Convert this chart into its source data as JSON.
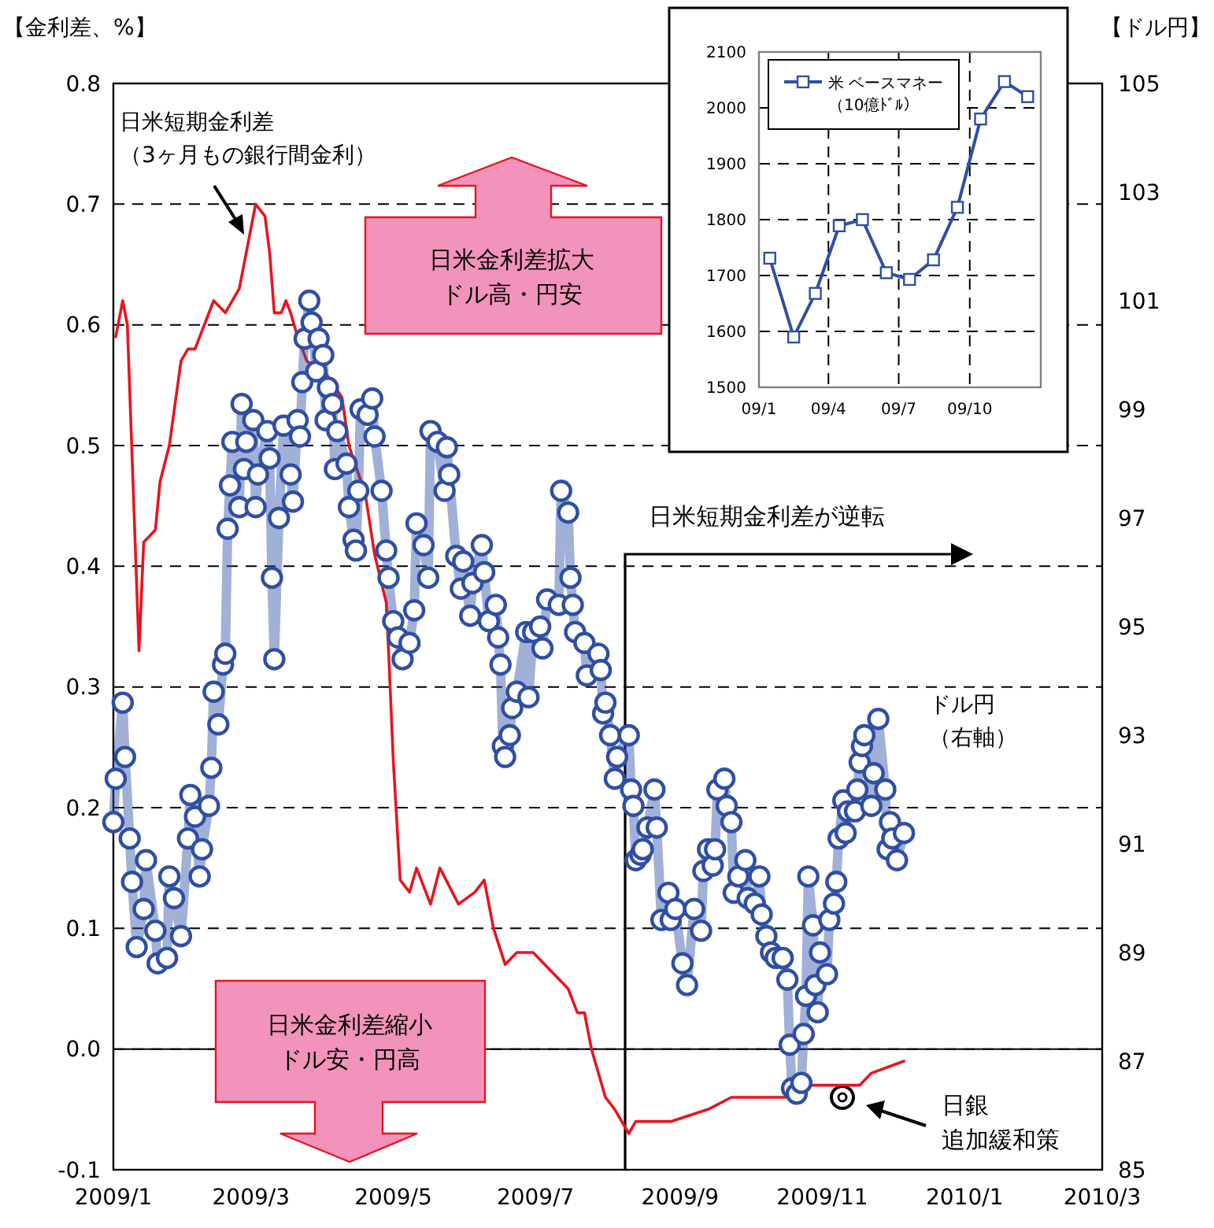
{
  "chart_data": [
    {
      "type": "line",
      "ylabel": "【金利差、%】",
      "y2label": "【ドル円】",
      "xlim": [
        "2009-01-01",
        "2010-03-01"
      ],
      "xticks": [
        {
          "value": "2009-01-01",
          "label": "2009/1"
        },
        {
          "value": "2009-03-01",
          "label": "2009/3"
        },
        {
          "value": "2009-05-01",
          "label": "2009/5"
        },
        {
          "value": "2009-07-01",
          "label": "2009/7"
        },
        {
          "value": "2009-09-01",
          "label": "2009/9"
        },
        {
          "value": "2009-11-01",
          "label": "2009/11"
        },
        {
          "value": "2010-01-01",
          "label": "2010/1"
        },
        {
          "value": "2010-03-01",
          "label": "2010/3"
        }
      ],
      "ylim": [
        -0.1,
        0.8
      ],
      "yticks": [
        -0.1,
        {
          "value": 0,
          "label": "0.0"
        },
        0.1,
        0.2,
        0.3,
        0.4,
        0.5,
        0.6,
        0.7,
        0.8
      ],
      "y2lim": [
        85,
        105
      ],
      "y2ticks": [
        85,
        87,
        89,
        91,
        93,
        95,
        97,
        99,
        101,
        103,
        105
      ],
      "grid": "y",
      "ref_lines": [
        {
          "axis": "y",
          "value": 0,
          "color": "#000000",
          "line_style": "solid"
        }
      ],
      "annotations": [
        "日米金利差拡大ドル高・円安",
        "日米金利差縮小ドル安・円高",
        "日米短期金利差が逆転",
        "日銀追加緩和策"
      ],
      "series": [
        {
          "name": "日米短期金利差（3ヶ月もの銀行間金利）",
          "color": "#e8141e",
          "marker": "none",
          "x": [
            "2009-01-02",
            "2009-01-05",
            "2009-01-07",
            "2009-01-12",
            "2009-01-14",
            "2009-01-19",
            "2009-01-21",
            "2009-01-25",
            "2009-01-30",
            "2009-02-02",
            "2009-02-05",
            "2009-02-13",
            "2009-02-18",
            "2009-02-24",
            "2009-02-27",
            "2009-03-02",
            "2009-03-03",
            "2009-03-07",
            "2009-03-09",
            "2009-03-11",
            "2009-03-14",
            "2009-03-16",
            "2009-03-18",
            "2009-03-21",
            "2009-03-25",
            "2009-04-02",
            "2009-04-09",
            "2009-04-12",
            "2009-04-19",
            "2009-04-23",
            "2009-04-28",
            "2009-04-29",
            "2009-05-01",
            "2009-05-04",
            "2009-05-08",
            "2009-05-11",
            "2009-05-17",
            "2009-05-21",
            "2009-05-29",
            "2009-06-05",
            "2009-06-09",
            "2009-06-13",
            "2009-06-18",
            "2009-06-23",
            "2009-06-30",
            "2009-07-10",
            "2009-07-15",
            "2009-07-19",
            "2009-07-22",
            "2009-07-25",
            "2009-07-31",
            "2009-08-04",
            "2009-08-10",
            "2009-08-13",
            "2009-08-28",
            "2009-09-13",
            "2009-09-23",
            "2009-10-06",
            "2009-10-08",
            "2009-10-17",
            "2009-10-27",
            "2009-11-09",
            "2009-11-17",
            "2009-11-22",
            "2009-12-06"
          ],
          "values": [
            0.59,
            0.62,
            0.6,
            0.33,
            0.42,
            0.43,
            0.47,
            0.5,
            0.57,
            0.58,
            0.58,
            0.62,
            0.61,
            0.63,
            0.66,
            0.69,
            0.7,
            0.69,
            0.66,
            0.61,
            0.61,
            0.62,
            0.61,
            0.59,
            0.57,
            0.56,
            0.54,
            0.5,
            0.46,
            0.41,
            0.37,
            0.33,
            0.24,
            0.14,
            0.13,
            0.15,
            0.12,
            0.15,
            0.12,
            0.13,
            0.14,
            0.1,
            0.07,
            0.08,
            0.08,
            0.06,
            0.05,
            0.03,
            0.03,
            0.0,
            -0.04,
            -0.05,
            -0.07,
            -0.06,
            -0.06,
            -0.05,
            -0.04,
            -0.04,
            -0.04,
            -0.04,
            -0.03,
            -0.03,
            -0.03,
            -0.02,
            -0.01
          ]
        },
        {
          "name": "ドル円（右軸）",
          "color": "#2e4fa3",
          "marker": "circle",
          "axis": "y2",
          "x": [
            "2009-01-01",
            "2009-01-02",
            "2009-01-05",
            "2009-01-06",
            "2009-01-08",
            "2009-01-09",
            "2009-01-11",
            "2009-01-14",
            "2009-01-15",
            "2009-01-19",
            "2009-01-20",
            "2009-01-24",
            "2009-01-25",
            "2009-01-27",
            "2009-01-30",
            "2009-02-02",
            "2009-02-03",
            "2009-02-05",
            "2009-02-07",
            "2009-02-08",
            "2009-02-11",
            "2009-02-12",
            "2009-02-13",
            "2009-02-15",
            "2009-02-17",
            "2009-02-18",
            "2009-02-19",
            "2009-02-20",
            "2009-02-21",
            "2009-02-24",
            "2009-02-25",
            "2009-02-26",
            "2009-02-27",
            "2009-03-02",
            "2009-03-03",
            "2009-03-04",
            "2009-03-08",
            "2009-03-09",
            "2009-03-10",
            "2009-03-11",
            "2009-03-13",
            "2009-03-15",
            "2009-03-18",
            "2009-03-19",
            "2009-03-21",
            "2009-03-22",
            "2009-03-23",
            "2009-03-24",
            "2009-03-26",
            "2009-03-27",
            "2009-03-29",
            "2009-03-30",
            "2009-04-01",
            "2009-04-02",
            "2009-04-03",
            "2009-04-05",
            "2009-04-06",
            "2009-04-07",
            "2009-04-11",
            "2009-04-12",
            "2009-04-14",
            "2009-04-15",
            "2009-04-16",
            "2009-04-17",
            "2009-04-20",
            "2009-04-22",
            "2009-04-23",
            "2009-04-26",
            "2009-04-28",
            "2009-04-29",
            "2009-05-01",
            "2009-05-03",
            "2009-05-05",
            "2009-05-08",
            "2009-05-10",
            "2009-05-11",
            "2009-05-14",
            "2009-05-16",
            "2009-05-17",
            "2009-05-20",
            "2009-05-23",
            "2009-05-24",
            "2009-05-25",
            "2009-05-28",
            "2009-05-30",
            "2009-05-31",
            "2009-06-03",
            "2009-06-04",
            "2009-06-08",
            "2009-06-09",
            "2009-06-11",
            "2009-06-14",
            "2009-06-15",
            "2009-06-16",
            "2009-06-17",
            "2009-06-18",
            "2009-06-20",
            "2009-06-21",
            "2009-06-23",
            "2009-06-27",
            "2009-06-28",
            "2009-06-30",
            "2009-07-03",
            "2009-07-04",
            "2009-07-06",
            "2009-07-11",
            "2009-07-12",
            "2009-07-15",
            "2009-07-16",
            "2009-07-17",
            "2009-07-18",
            "2009-07-22",
            "2009-07-23",
            "2009-07-28",
            "2009-07-29",
            "2009-07-30",
            "2009-07-31",
            "2009-08-02",
            "2009-08-04",
            "2009-08-05",
            "2009-08-10",
            "2009-08-11",
            "2009-08-12",
            "2009-08-13",
            "2009-08-15",
            "2009-08-16",
            "2009-08-18",
            "2009-08-21",
            "2009-08-22",
            "2009-08-24",
            "2009-08-27",
            "2009-08-28",
            "2009-08-30",
            "2009-09-02",
            "2009-09-04",
            "2009-09-07",
            "2009-09-10",
            "2009-09-11",
            "2009-09-13",
            "2009-09-15",
            "2009-09-16",
            "2009-09-17",
            "2009-09-20",
            "2009-09-21",
            "2009-09-23",
            "2009-09-24",
            "2009-09-26",
            "2009-09-29",
            "2009-09-30",
            "2009-10-03",
            "2009-10-05",
            "2009-10-06",
            "2009-10-08",
            "2009-10-10",
            "2009-10-12",
            "2009-10-15",
            "2009-10-17",
            "2009-10-18",
            "2009-10-19",
            "2009-10-21",
            "2009-10-23",
            "2009-10-24",
            "2009-10-25",
            "2009-10-26",
            "2009-10-28",
            "2009-10-29",
            "2009-10-30",
            "2009-10-31",
            "2009-11-03",
            "2009-11-04",
            "2009-11-06",
            "2009-11-07",
            "2009-11-08",
            "2009-11-10",
            "2009-11-11",
            "2009-11-12",
            "2009-11-15",
            "2009-11-16",
            "2009-11-17",
            "2009-11-18",
            "2009-11-19",
            "2009-11-22",
            "2009-11-23",
            "2009-11-25",
            "2009-11-28",
            "2009-11-29",
            "2009-11-30",
            "2009-12-01",
            "2009-12-03",
            "2009-12-06"
          ],
          "values": [
            91.4,
            92.2,
            93.6,
            92.6,
            91.1,
            90.3,
            89.1,
            89.8,
            90.7,
            89.4,
            88.8,
            88.9,
            90.4,
            90.0,
            89.3,
            91.1,
            91.9,
            91.5,
            90.4,
            90.9,
            91.7,
            92.4,
            93.8,
            93.2,
            94.3,
            94.5,
            96.8,
            97.6,
            98.4,
            97.2,
            99.1,
            97.9,
            98.4,
            98.8,
            97.2,
            97.8,
            98.6,
            98.1,
            95.9,
            94.4,
            97.0,
            98.7,
            97.8,
            97.3,
            98.8,
            98.5,
            99.5,
            100.3,
            101.0,
            100.6,
            99.7,
            100.3,
            100.0,
            98.8,
            99.4,
            99.1,
            97.9,
            98.6,
            98.0,
            97.2,
            96.6,
            96.4,
            97.5,
            99.0,
            98.9,
            99.2,
            98.5,
            97.5,
            96.4,
            95.9,
            95.1,
            94.8,
            94.4,
            94.7,
            95.3,
            96.9,
            96.5,
            95.9,
            98.6,
            98.4,
            97.5,
            98.3,
            97.8,
            96.3,
            95.7,
            96.2,
            95.2,
            95.8,
            96.5,
            96.0,
            95.1,
            95.4,
            94.8,
            94.3,
            92.8,
            92.6,
            93.0,
            93.5,
            93.8,
            94.9,
            93.7,
            94.9,
            95.0,
            94.6,
            95.5,
            95.4,
            97.5,
            97.1,
            95.9,
            95.4,
            94.9,
            94.7,
            94.1,
            94.5,
            94.2,
            93.4,
            93.6,
            93.0,
            92.2,
            92.6,
            93.0,
            92.0,
            91.7,
            90.7,
            90.8,
            90.9,
            91.3,
            92.0,
            91.3,
            89.6,
            90.1,
            89.6,
            89.8,
            88.8,
            88.4,
            89.8,
            89.4,
            90.5,
            90.9,
            90.6,
            90.9,
            92.0,
            92.2,
            91.7,
            91.4,
            90.1,
            90.4,
            90.7,
            90.0,
            89.9,
            90.4,
            89.7,
            89.3,
            89.0,
            88.9,
            88.9,
            88.5,
            87.3,
            86.5,
            86.4,
            86.6,
            87.5,
            88.2,
            90.4,
            89.5,
            88.4,
            87.9,
            89.0,
            88.6,
            89.6,
            89.9,
            90.3,
            91.1,
            91.8,
            91.2,
            91.6,
            91.6,
            92.0,
            92.5,
            92.8,
            93.0,
            91.7,
            92.3,
            93.3,
            92.0,
            90.9,
            91.4,
            91.1,
            90.7,
            91.2
          ]
        }
      ]
    },
    {
      "type": "line",
      "x": [
        "2009-01-15",
        "2009-02-15",
        "2009-03-15",
        "2009-04-15",
        "2009-05-15",
        "2009-06-15",
        "2009-07-15",
        "2009-08-15",
        "2009-09-15",
        "2009-10-15",
        "2009-11-15",
        "2009-12-15"
      ],
      "xlim": [
        "2009-01-01",
        "2010-01-01"
      ],
      "xticks": [
        {
          "value": "2009-01-01",
          "label": "09/1"
        },
        {
          "value": "2009-04-01",
          "label": "09/4"
        },
        {
          "value": "2009-07-01",
          "label": "09/7"
        },
        {
          "value": "2009-10-01",
          "label": "09/10"
        }
      ],
      "ylim": [
        1500,
        2100
      ],
      "yticks": [
        1500,
        1600,
        1700,
        1800,
        1900,
        2000,
        2100
      ],
      "grid": true,
      "legend": "top left",
      "marker": "square",
      "series": [
        {
          "name": "米 ベースマネー（10億ﾄﾞﾙ）",
          "color": "#2e4fa3",
          "values": [
            1731,
            1590,
            1668,
            1789,
            1800,
            1705,
            1693,
            1728,
            1822,
            1980,
            2047,
            2020
          ]
        }
      ]
    }
  ]
}
